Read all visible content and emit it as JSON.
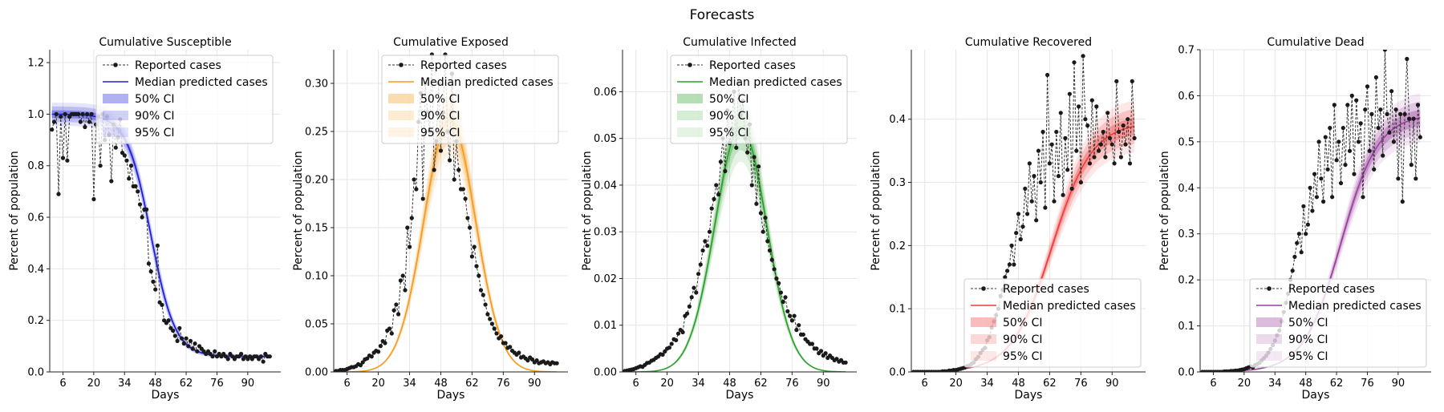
{
  "figure": {
    "title": "Forecasts"
  },
  "legend_labels": {
    "reported": "Reported cases",
    "median": "Median predicted cases",
    "ci50": "50% CI",
    "ci90": "90% CI",
    "ci95": "95% CI"
  },
  "chart_data": [
    {
      "type": "line",
      "title": "Cumulative Susceptible",
      "xlabel": "Days",
      "ylabel": "Percent of population",
      "xlim": [
        0,
        105
      ],
      "ylim": [
        0,
        1.25
      ],
      "xticks": [
        6,
        20,
        34,
        48,
        62,
        76,
        90
      ],
      "yticks": [
        0.0,
        0.2,
        0.4,
        0.6,
        0.8,
        1.0,
        1.2
      ],
      "ytick_labels": [
        "0.0",
        "0.2",
        "0.4",
        "0.6",
        "0.8",
        "1.0",
        "1.2"
      ],
      "color": "#1f1fd6",
      "legend_position": "top-center",
      "grid": true,
      "model": {
        "kind": "decline",
        "start": 1.0,
        "end": 0.06,
        "center": 46,
        "scale": 5.5,
        "spread": 0.015
      },
      "reported": {
        "x": [
          1,
          2,
          3,
          4,
          5,
          6,
          7,
          8,
          9,
          10,
          11,
          12,
          13,
          14,
          15,
          16,
          17,
          18,
          19,
          20,
          21,
          22,
          23,
          24,
          25,
          26,
          27,
          28,
          29,
          30,
          31,
          32,
          33,
          34,
          35,
          36,
          37,
          38,
          39,
          40,
          41,
          42,
          43,
          44,
          45,
          46,
          47,
          48,
          49,
          50,
          51,
          52,
          53,
          54,
          55,
          56,
          57,
          58,
          59,
          60,
          61,
          62,
          63,
          64,
          65,
          66,
          67,
          68,
          69,
          70,
          71,
          72,
          73,
          74,
          75,
          76,
          77,
          78,
          79,
          80,
          81,
          82,
          83,
          84,
          85,
          86,
          87,
          88,
          89,
          90,
          91,
          92,
          93,
          94,
          95,
          96,
          97,
          98,
          99,
          100
        ],
        "y": [
          0.94,
          0.97,
          1.0,
          0.69,
          0.99,
          0.83,
          1.0,
          0.82,
          0.99,
          1.0,
          1.0,
          1.0,
          1.0,
          0.97,
          1.0,
          0.95,
          1.0,
          0.97,
          1.0,
          0.67,
          0.96,
          0.99,
          0.8,
          1.0,
          0.9,
          0.99,
          0.92,
          0.74,
          0.96,
          0.87,
          0.91,
          0.98,
          0.85,
          0.84,
          0.82,
          0.75,
          0.8,
          0.72,
          0.72,
          0.7,
          0.65,
          0.6,
          0.63,
          0.63,
          0.42,
          0.39,
          0.35,
          0.32,
          0.49,
          0.27,
          0.26,
          0.2,
          0.19,
          0.2,
          0.17,
          0.16,
          0.14,
          0.12,
          0.17,
          0.13,
          0.11,
          0.13,
          0.1,
          0.12,
          0.09,
          0.11,
          0.08,
          0.1,
          0.09,
          0.08,
          0.07,
          0.08,
          0.07,
          0.06,
          0.08,
          0.06,
          0.07,
          0.06,
          0.07,
          0.06,
          0.05,
          0.07,
          0.06,
          0.05,
          0.06,
          0.06,
          0.07,
          0.05,
          0.06,
          0.05,
          0.06,
          0.05,
          0.06,
          0.06,
          0.05,
          0.06,
          0.04,
          0.07,
          0.06,
          0.06
        ]
      }
    },
    {
      "type": "line",
      "title": "Cumulative Exposed",
      "xlabel": "Days",
      "ylabel": "Percent of population",
      "xlim": [
        0,
        105
      ],
      "ylim": [
        0,
        0.335
      ],
      "xticks": [
        6,
        20,
        34,
        48,
        62,
        76,
        90
      ],
      "yticks": [
        0.0,
        0.05,
        0.1,
        0.15,
        0.2,
        0.25,
        0.3
      ],
      "ytick_labels": [
        "0.00",
        "0.05",
        "0.10",
        "0.15",
        "0.20",
        "0.25",
        "0.30"
      ],
      "color": "#f39c1e",
      "legend_position": "top-center",
      "grid": true,
      "model": {
        "kind": "peak",
        "peak": 0.262,
        "center": 52,
        "sigma": 11.5,
        "spread": 0.012
      },
      "reported": {
        "x": [
          1,
          2,
          3,
          4,
          5,
          6,
          7,
          8,
          9,
          10,
          11,
          12,
          13,
          14,
          15,
          16,
          17,
          18,
          19,
          20,
          21,
          22,
          23,
          24,
          25,
          26,
          27,
          28,
          29,
          30,
          31,
          32,
          33,
          34,
          35,
          36,
          37,
          38,
          39,
          40,
          41,
          42,
          43,
          44,
          45,
          46,
          47,
          48,
          49,
          50,
          51,
          52,
          53,
          54,
          55,
          56,
          57,
          58,
          59,
          60,
          61,
          62,
          63,
          64,
          65,
          66,
          67,
          68,
          69,
          70,
          71,
          72,
          73,
          74,
          75,
          76,
          77,
          78,
          79,
          80,
          81,
          82,
          83,
          84,
          85,
          86,
          87,
          88,
          89,
          90,
          91,
          92,
          93,
          94,
          95,
          96,
          97,
          98,
          99,
          100
        ],
        "y": [
          0.001,
          0.001,
          0.002,
          0.002,
          0.002,
          0.003,
          0.004,
          0.005,
          0.005,
          0.006,
          0.008,
          0.007,
          0.01,
          0.013,
          0.014,
          0.017,
          0.016,
          0.02,
          0.022,
          0.021,
          0.027,
          0.032,
          0.03,
          0.043,
          0.045,
          0.04,
          0.064,
          0.07,
          0.06,
          0.095,
          0.1,
          0.085,
          0.15,
          0.13,
          0.16,
          0.2,
          0.19,
          0.26,
          0.29,
          0.18,
          0.3,
          0.27,
          0.25,
          0.33,
          0.21,
          0.24,
          0.3,
          0.23,
          0.27,
          0.33,
          0.25,
          0.22,
          0.31,
          0.2,
          0.24,
          0.21,
          0.19,
          0.19,
          0.18,
          0.16,
          0.15,
          0.12,
          0.13,
          0.11,
          0.1,
          0.085,
          0.08,
          0.07,
          0.06,
          0.055,
          0.05,
          0.045,
          0.04,
          0.035,
          0.037,
          0.03,
          0.03,
          0.025,
          0.026,
          0.022,
          0.02,
          0.018,
          0.02,
          0.015,
          0.016,
          0.014,
          0.012,
          0.015,
          0.013,
          0.01,
          0.012,
          0.009,
          0.01,
          0.011,
          0.009,
          0.01,
          0.008,
          0.01,
          0.009,
          0.009
        ]
      }
    },
    {
      "type": "line",
      "title": "Cumulative Infected",
      "xlabel": "Days",
      "ylabel": "Percent of population",
      "xlim": [
        0,
        105
      ],
      "ylim": [
        0,
        0.069
      ],
      "xticks": [
        6,
        20,
        34,
        48,
        62,
        76,
        90
      ],
      "yticks": [
        0.0,
        0.01,
        0.02,
        0.03,
        0.04,
        0.05,
        0.06
      ],
      "ytick_labels": [
        "0.00",
        "0.01",
        "0.02",
        "0.03",
        "0.04",
        "0.05",
        "0.06"
      ],
      "color": "#2ca02c",
      "legend_position": "top-center",
      "grid": true,
      "model": {
        "kind": "peak",
        "peak": 0.0525,
        "center": 53,
        "sigma": 11.5,
        "spread": 0.0025
      },
      "reported": {
        "x": [
          1,
          2,
          3,
          4,
          5,
          6,
          7,
          8,
          9,
          10,
          11,
          12,
          13,
          14,
          15,
          16,
          17,
          18,
          19,
          20,
          21,
          22,
          23,
          24,
          25,
          26,
          27,
          28,
          29,
          30,
          31,
          32,
          33,
          34,
          35,
          36,
          37,
          38,
          39,
          40,
          41,
          42,
          43,
          44,
          45,
          46,
          47,
          48,
          49,
          50,
          51,
          52,
          53,
          54,
          55,
          56,
          57,
          58,
          59,
          60,
          61,
          62,
          63,
          64,
          65,
          66,
          67,
          68,
          69,
          70,
          71,
          72,
          73,
          74,
          75,
          76,
          77,
          78,
          79,
          80,
          81,
          82,
          83,
          84,
          85,
          86,
          87,
          88,
          89,
          90,
          91,
          92,
          93,
          94,
          95,
          96,
          97,
          98,
          99,
          100
        ],
        "y": [
          0.0002,
          0.0003,
          0.0004,
          0.0005,
          0.0006,
          0.0008,
          0.001,
          0.0012,
          0.0011,
          0.0015,
          0.0019,
          0.002,
          0.0024,
          0.0026,
          0.003,
          0.0033,
          0.0038,
          0.0037,
          0.0044,
          0.005,
          0.0052,
          0.006,
          0.007,
          0.0068,
          0.0082,
          0.009,
          0.0085,
          0.012,
          0.0125,
          0.014,
          0.016,
          0.018,
          0.017,
          0.021,
          0.023,
          0.026,
          0.028,
          0.027,
          0.03,
          0.035,
          0.037,
          0.04,
          0.038,
          0.045,
          0.05,
          0.043,
          0.056,
          0.049,
          0.052,
          0.06,
          0.048,
          0.062,
          0.055,
          0.058,
          0.05,
          0.047,
          0.053,
          0.04,
          0.046,
          0.036,
          0.044,
          0.034,
          0.03,
          0.033,
          0.028,
          0.026,
          0.024,
          0.022,
          0.02,
          0.019,
          0.017,
          0.015,
          0.016,
          0.013,
          0.012,
          0.011,
          0.012,
          0.009,
          0.01,
          0.008,
          0.008,
          0.007,
          0.0065,
          0.006,
          0.006,
          0.005,
          0.005,
          0.004,
          0.0045,
          0.0035,
          0.004,
          0.003,
          0.0035,
          0.003,
          0.0025,
          0.0028,
          0.0022,
          0.0025,
          0.002,
          0.002
        ]
      }
    },
    {
      "type": "line",
      "title": "Cumulative Recovered",
      "xlabel": "Days",
      "ylabel": "Percent of population",
      "xlim": [
        0,
        105
      ],
      "ylim": [
        0,
        0.51
      ],
      "xticks": [
        6,
        20,
        34,
        48,
        62,
        76,
        90
      ],
      "yticks": [
        0.0,
        0.1,
        0.2,
        0.3,
        0.4
      ],
      "ytick_labels": [
        "0.0",
        "0.1",
        "0.2",
        "0.3",
        "0.4"
      ],
      "color": "#ef3b3b",
      "legend_position": "bottom-right",
      "grid": true,
      "model": {
        "kind": "rise",
        "end": 0.395,
        "center": 63,
        "scale": 9.0,
        "spread": 0.014
      },
      "reported": {
        "x": [
          1,
          2,
          3,
          4,
          5,
          6,
          7,
          8,
          9,
          10,
          11,
          12,
          13,
          14,
          15,
          16,
          17,
          18,
          19,
          20,
          21,
          22,
          23,
          24,
          25,
          26,
          27,
          28,
          29,
          30,
          31,
          32,
          33,
          34,
          35,
          36,
          37,
          38,
          39,
          40,
          41,
          42,
          43,
          44,
          45,
          46,
          47,
          48,
          49,
          50,
          51,
          52,
          53,
          54,
          55,
          56,
          57,
          58,
          59,
          60,
          61,
          62,
          63,
          64,
          65,
          66,
          67,
          68,
          69,
          70,
          71,
          72,
          73,
          74,
          75,
          76,
          77,
          78,
          79,
          80,
          81,
          82,
          83,
          84,
          85,
          86,
          87,
          88,
          89,
          90,
          91,
          92,
          93,
          94,
          95,
          96,
          97,
          98,
          99,
          100
        ],
        "y": [
          0.0,
          0.0,
          0.0,
          0.0,
          0.0,
          0.0,
          0.0,
          0.0,
          0.0,
          0.0,
          0.0,
          0.0,
          0.0,
          0.001,
          0.001,
          0.001,
          0.002,
          0.002,
          0.003,
          0.003,
          0.004,
          0.005,
          0.006,
          0.007,
          0.009,
          0.01,
          0.013,
          0.015,
          0.02,
          0.024,
          0.03,
          0.035,
          0.038,
          0.05,
          0.055,
          0.07,
          0.08,
          0.09,
          0.1,
          0.12,
          0.13,
          0.15,
          0.16,
          0.17,
          0.2,
          0.17,
          0.22,
          0.25,
          0.21,
          0.23,
          0.29,
          0.25,
          0.33,
          0.27,
          0.31,
          0.24,
          0.35,
          0.3,
          0.38,
          0.26,
          0.47,
          0.33,
          0.36,
          0.27,
          0.38,
          0.31,
          0.41,
          0.28,
          0.37,
          0.32,
          0.44,
          0.29,
          0.49,
          0.35,
          0.42,
          0.3,
          0.5,
          0.4,
          0.39,
          0.33,
          0.43,
          0.34,
          0.42,
          0.35,
          0.36,
          0.38,
          0.34,
          0.41,
          0.37,
          0.36,
          0.33,
          0.46,
          0.38,
          0.34,
          0.39,
          0.36,
          0.4,
          0.33,
          0.46,
          0.37
        ]
      }
    },
    {
      "type": "line",
      "title": "Cumulative Dead",
      "xlabel": "Days",
      "ylabel": "Percent of population",
      "xlim": [
        0,
        105
      ],
      "ylim": [
        0,
        0.7
      ],
      "xticks": [
        6,
        20,
        34,
        48,
        62,
        76,
        90
      ],
      "yticks": [
        0.0,
        0.1,
        0.2,
        0.3,
        0.4,
        0.5,
        0.6,
        0.7
      ],
      "ytick_labels": [
        "0.0",
        "0.1",
        "0.2",
        "0.3",
        "0.4",
        "0.5",
        "0.6",
        "0.7"
      ],
      "color": "#9b3f9f",
      "legend_position": "bottom-right",
      "grid": true,
      "model": {
        "kind": "rise",
        "end": 0.56,
        "center": 64,
        "scale": 8.5,
        "spread": 0.018
      },
      "reported": {
        "x": [
          1,
          2,
          3,
          4,
          5,
          6,
          7,
          8,
          9,
          10,
          11,
          12,
          13,
          14,
          15,
          16,
          17,
          18,
          19,
          20,
          21,
          22,
          23,
          24,
          25,
          26,
          27,
          28,
          29,
          30,
          31,
          32,
          33,
          34,
          35,
          36,
          37,
          38,
          39,
          40,
          41,
          42,
          43,
          44,
          45,
          46,
          47,
          48,
          49,
          50,
          51,
          52,
          53,
          54,
          55,
          56,
          57,
          58,
          59,
          60,
          61,
          62,
          63,
          64,
          65,
          66,
          67,
          68,
          69,
          70,
          71,
          72,
          73,
          74,
          75,
          76,
          77,
          78,
          79,
          80,
          81,
          82,
          83,
          84,
          85,
          86,
          87,
          88,
          89,
          90,
          91,
          92,
          93,
          94,
          95,
          96,
          97,
          98,
          99,
          100
        ],
        "y": [
          0.0,
          0.0,
          0.0,
          0.0,
          0.0,
          0.0,
          0.0,
          0.0,
          0.0,
          0.0,
          0.001,
          0.001,
          0.001,
          0.002,
          0.002,
          0.003,
          0.003,
          0.004,
          0.005,
          0.006,
          0.008,
          0.01,
          0.012,
          0.01,
          0.015,
          0.017,
          0.02,
          0.025,
          0.03,
          0.035,
          0.042,
          0.05,
          0.058,
          0.068,
          0.08,
          0.09,
          0.11,
          0.13,
          0.15,
          0.17,
          0.2,
          0.22,
          0.25,
          0.28,
          0.3,
          0.26,
          0.36,
          0.3,
          0.32,
          0.4,
          0.35,
          0.43,
          0.38,
          0.5,
          0.42,
          0.37,
          0.51,
          0.44,
          0.53,
          0.38,
          0.58,
          0.46,
          0.5,
          0.41,
          0.53,
          0.45,
          0.58,
          0.48,
          0.6,
          0.43,
          0.59,
          0.5,
          0.54,
          0.38,
          0.57,
          0.62,
          0.48,
          0.56,
          0.44,
          0.64,
          0.53,
          0.57,
          0.47,
          0.7,
          0.56,
          0.52,
          0.61,
          0.5,
          0.57,
          0.42,
          0.56,
          0.37,
          0.56,
          0.68,
          0.55,
          0.45,
          0.55,
          0.42,
          0.58,
          0.51
        ]
      }
    }
  ]
}
